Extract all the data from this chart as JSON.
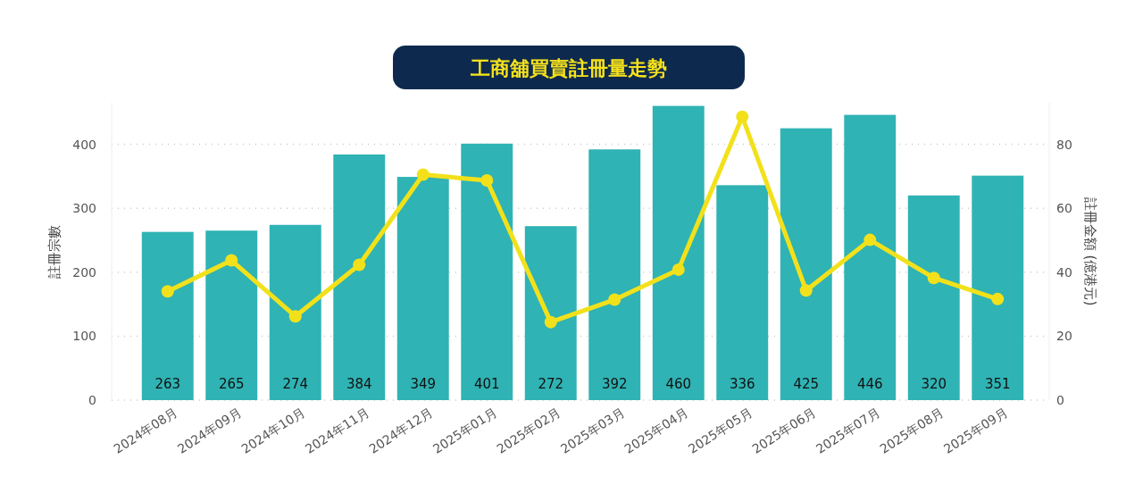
{
  "chart_data": {
    "type": "bar",
    "title": "工商舖買賣註冊量走勢",
    "categories": [
      "2024年08月",
      "2024年09月",
      "2024年10月",
      "2024年11月",
      "2024年12月",
      "2025年01月",
      "2025年02月",
      "2025年03月",
      "2025年04月",
      "2025年05月",
      "2025年06月",
      "2025年07月",
      "2025年08月",
      "2025年09月"
    ],
    "series": [
      {
        "color": "#2fb3b4",
        "values": [
          263,
          265,
          274,
          384,
          349,
          401,
          272,
          392,
          460,
          336,
          425,
          446,
          320,
          351
        ],
        "value_labels": [
          "263",
          "265",
          "274",
          "384",
          "349",
          "401",
          "272",
          "392",
          "460",
          "336",
          "425",
          "446",
          "320",
          "351"
        ]
      },
      {
        "type": "line",
        "axis": "y2",
        "color": "#f2e11a",
        "marker": "circle",
        "values": [
          34.0,
          43.7,
          26.2,
          42.3,
          70.5,
          68.7,
          24.4,
          31.4,
          40.8,
          88.6,
          34.3,
          50.1,
          38.2,
          31.6
        ]
      }
    ],
    "ylabel": "註冊宗數",
    "y2label": "註冊金額 (億港元)",
    "ylim": [
      0,
      465
    ],
    "yticks": [
      0,
      100,
      200,
      300,
      400
    ],
    "y2lim": [
      0,
      93
    ],
    "y2ticks": [
      0,
      20,
      40,
      60,
      80
    ],
    "grid": "y"
  }
}
